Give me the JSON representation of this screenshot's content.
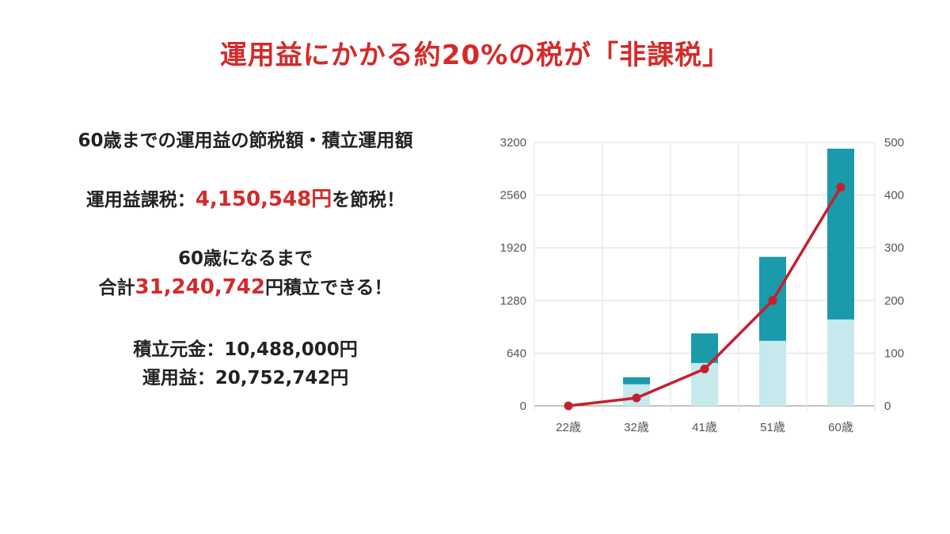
{
  "title": "運用益にかかる約20%の税が「非課税」",
  "summary": {
    "heading": "60歳までの運用益の節税額・積立運用額",
    "tax_prefix": "運用益課税：",
    "tax_amount": "4,150,548円",
    "tax_suffix": "を節税！",
    "age_line": "60歳になるまで",
    "total_prefix": "合計",
    "total_amount": "31,240,742",
    "total_suffix": "円積立できる！",
    "principal": "積立元金：10,488,000円",
    "profit": "運用益：20,752,742円"
  },
  "colors": {
    "accent_red": "#d42a2a",
    "bar_principal": "#c6e9ee",
    "bar_profit": "#1a9aaa",
    "line": "#c3202e"
  },
  "chart_data": {
    "type": "bar",
    "categories": [
      "22歳",
      "32歳",
      "41歳",
      "51歳",
      "60歳"
    ],
    "series": [
      {
        "values": [
          0,
          262,
          520,
          790,
          1049
        ]
      },
      {
        "values": [
          0,
          85,
          360,
          1020,
          2075
        ]
      },
      {
        "values": [
          0,
          15,
          70,
          200,
          415
        ]
      }
    ],
    "y_left": {
      "ticks": [
        "0",
        "640",
        "1280",
        "1920",
        "2560",
        "3200"
      ],
      "lim": [
        0,
        3200
      ]
    },
    "y_right": {
      "ticks": [
        "0",
        "100",
        "200",
        "300",
        "400",
        "500"
      ],
      "lim": [
        0,
        500
      ]
    },
    "grid": true,
    "legend": "none"
  }
}
